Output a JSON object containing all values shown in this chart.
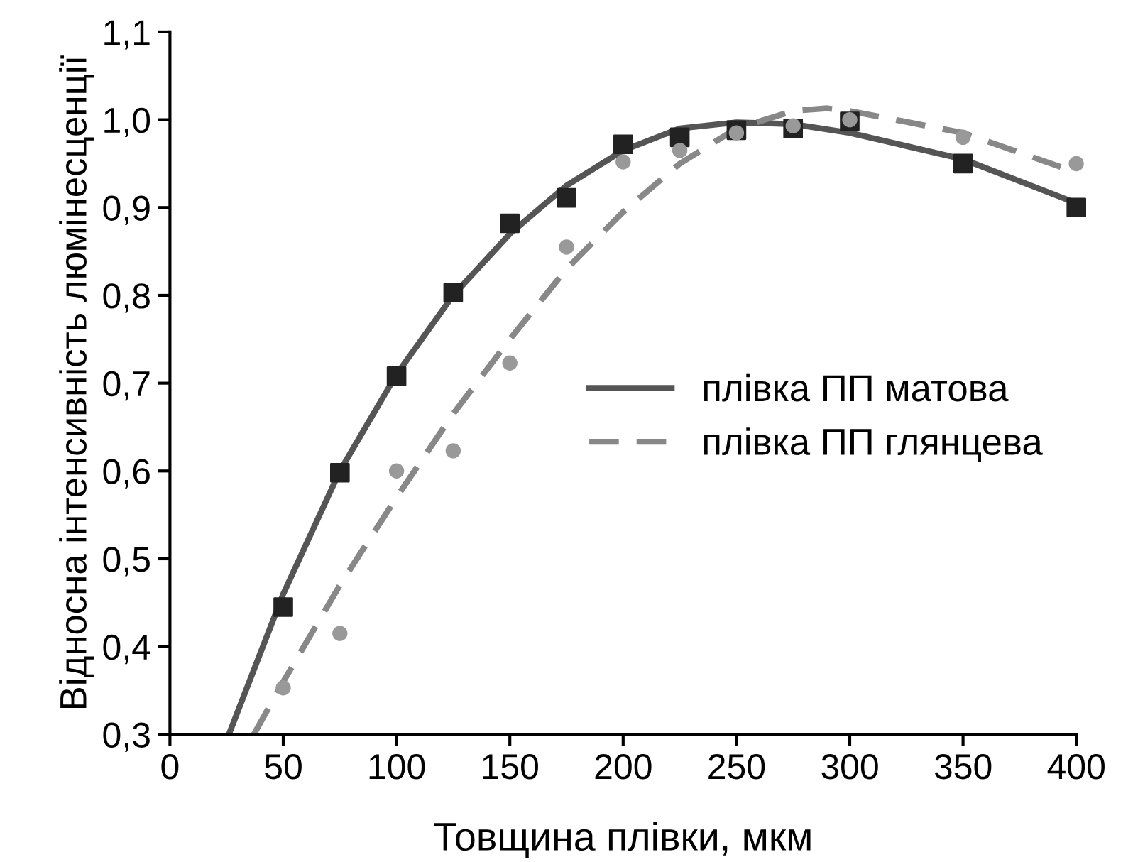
{
  "chart_data": {
    "type": "scatter",
    "xlabel": "Товщина плівки, мкм",
    "ylabel": "Відносна інтенсивність люмінесценції",
    "xlim": [
      0,
      400
    ],
    "xticks": [
      0,
      50,
      100,
      150,
      200,
      250,
      300,
      350,
      400
    ],
    "ylim": [
      0.3,
      1.1
    ],
    "yticks": [
      {
        "value": 0.3,
        "label": "0,3"
      },
      {
        "value": 0.4,
        "label": "0,4"
      },
      {
        "value": 0.5,
        "label": "0,5"
      },
      {
        "value": 0.6,
        "label": "0,6"
      },
      {
        "value": 0.7,
        "label": "0,7"
      },
      {
        "value": 0.8,
        "label": "0,8"
      },
      {
        "value": 0.9,
        "label": "0,9"
      },
      {
        "value": 1.0,
        "label": "1,0"
      },
      {
        "value": 1.1,
        "label": "1,1"
      }
    ],
    "grid": false,
    "legend": "right",
    "series": [
      {
        "marker": "square",
        "color": "#222222",
        "x": [
          50,
          75,
          100,
          125,
          150,
          175,
          200,
          225,
          250,
          275,
          300,
          350,
          400
        ],
        "values": [
          0.445,
          0.598,
          0.708,
          0.803,
          0.882,
          0.911,
          0.972,
          0.98,
          0.988,
          0.99,
          0.998,
          0.95,
          0.9
        ]
      },
      {
        "marker": "circle",
        "color": "#999999",
        "x": [
          50,
          75,
          100,
          125,
          150,
          175,
          200,
          225,
          250,
          275,
          300,
          350,
          400
        ],
        "values": [
          0.353,
          0.415,
          0.6,
          0.623,
          0.723,
          0.855,
          0.952,
          0.965,
          0.985,
          0.993,
          1.0,
          0.98,
          0.95
        ]
      },
      {
        "type": "line",
        "name": "плівка ПП матова",
        "line_style": "solid",
        "color": "#555555",
        "x": [
          26,
          50,
          75,
          100,
          125,
          150,
          175,
          200,
          225,
          250,
          275,
          300,
          350,
          400
        ],
        "values": [
          0.3,
          0.46,
          0.6,
          0.71,
          0.8,
          0.87,
          0.925,
          0.965,
          0.99,
          0.997,
          0.995,
          0.985,
          0.955,
          0.905
        ]
      },
      {
        "type": "line",
        "name": "плівка ПП глянцева",
        "line_style": "dashed",
        "color": "#888888",
        "x": [
          37,
          50,
          75,
          100,
          125,
          150,
          175,
          200,
          225,
          250,
          275,
          290,
          300,
          350,
          400
        ],
        "values": [
          0.3,
          0.36,
          0.47,
          0.57,
          0.665,
          0.75,
          0.83,
          0.895,
          0.95,
          0.99,
          1.01,
          1.013,
          1.01,
          0.985,
          0.94
        ]
      }
    ]
  }
}
